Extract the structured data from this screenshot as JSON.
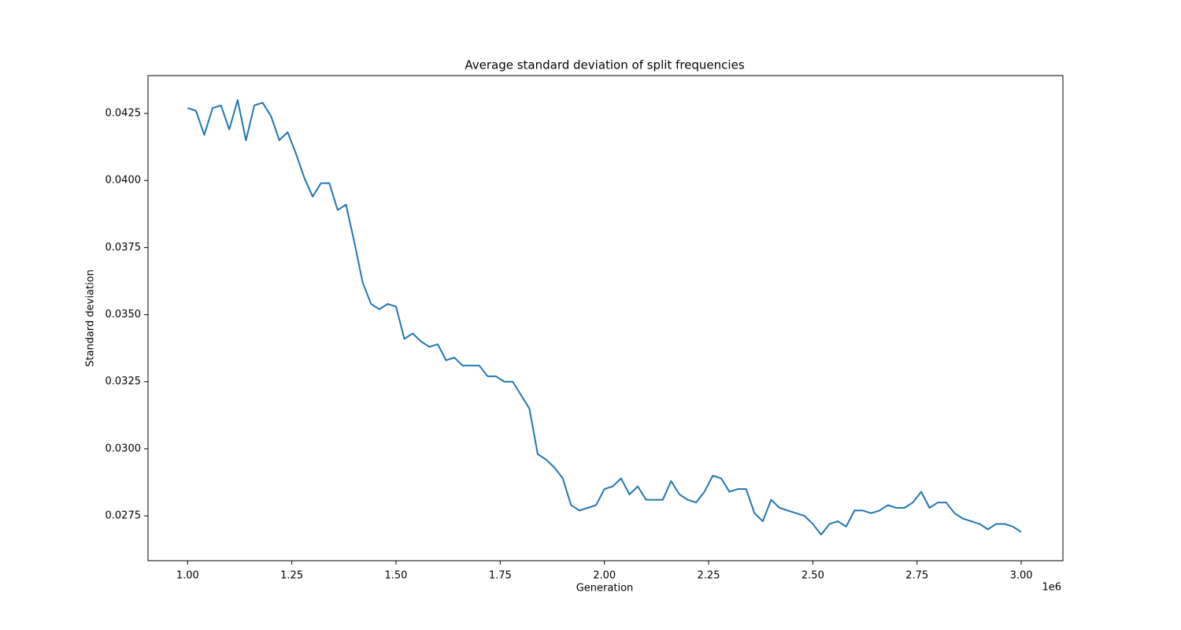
{
  "chart_data": {
    "type": "line",
    "title": "Average standard deviation of split frequencies",
    "x_label": "Generation",
    "y_label": "Standard deviation",
    "x_offset_label": "1e6",
    "x": [
      1000000,
      1020000,
      1040000,
      1060000,
      1080000,
      1100000,
      1120000,
      1140000,
      1160000,
      1180000,
      1200000,
      1220000,
      1240000,
      1260000,
      1280000,
      1300000,
      1320000,
      1340000,
      1360000,
      1380000,
      1400000,
      1420000,
      1440000,
      1460000,
      1480000,
      1500000,
      1520000,
      1540000,
      1560000,
      1580000,
      1600000,
      1620000,
      1640000,
      1660000,
      1680000,
      1700000,
      1720000,
      1740000,
      1760000,
      1780000,
      1800000,
      1820000,
      1840000,
      1860000,
      1880000,
      1900000,
      1920000,
      1940000,
      1960000,
      1980000,
      2000000,
      2020000,
      2040000,
      2060000,
      2080000,
      2100000,
      2120000,
      2140000,
      2160000,
      2180000,
      2200000,
      2220000,
      2240000,
      2260000,
      2280000,
      2300000,
      2320000,
      2340000,
      2360000,
      2380000,
      2400000,
      2420000,
      2440000,
      2460000,
      2480000,
      2500000,
      2520000,
      2540000,
      2560000,
      2580000,
      2600000,
      2620000,
      2640000,
      2660000,
      2680000,
      2700000,
      2720000,
      2740000,
      2760000,
      2780000,
      2800000,
      2820000,
      2840000,
      2860000,
      2880000,
      2900000,
      2920000,
      2940000,
      2960000,
      2980000,
      3000000
    ],
    "series": [
      {
        "name": "Average standard deviation",
        "color": "#1f77b4",
        "values": [
          0.0427,
          0.0426,
          0.0417,
          0.0427,
          0.0428,
          0.0419,
          0.043,
          0.0415,
          0.0428,
          0.0429,
          0.0424,
          0.0415,
          0.0418,
          0.041,
          0.0401,
          0.0394,
          0.0399,
          0.0399,
          0.0389,
          0.0391,
          0.0377,
          0.0362,
          0.0354,
          0.0352,
          0.0354,
          0.0353,
          0.0341,
          0.0343,
          0.034,
          0.0338,
          0.0339,
          0.0333,
          0.0334,
          0.0331,
          0.0331,
          0.0331,
          0.0327,
          0.0327,
          0.0325,
          0.0325,
          0.032,
          0.0315,
          0.0298,
          0.0296,
          0.0293,
          0.0289,
          0.0279,
          0.0277,
          0.0278,
          0.0279,
          0.0285,
          0.0286,
          0.0289,
          0.0283,
          0.0286,
          0.0281,
          0.0281,
          0.0281,
          0.0288,
          0.0283,
          0.0281,
          0.028,
          0.0284,
          0.029,
          0.0289,
          0.0284,
          0.0285,
          0.0285,
          0.0276,
          0.0273,
          0.0281,
          0.0278,
          0.0277,
          0.0276,
          0.0275,
          0.0272,
          0.0268,
          0.0272,
          0.0273,
          0.0271,
          0.0277,
          0.0277,
          0.0276,
          0.0277,
          0.0279,
          0.0278,
          0.0278,
          0.028,
          0.0284,
          0.0278,
          0.028,
          0.028,
          0.0276,
          0.0274,
          0.0273,
          0.0272,
          0.027,
          0.0272,
          0.0272,
          0.0271,
          0.0269
        ]
      }
    ],
    "xlim": [
      905000,
      3100000
    ],
    "ylim": [
      0.02583,
      0.04391
    ],
    "xticks": [
      {
        "value": 1000000,
        "label": "1.00"
      },
      {
        "value": 1250000,
        "label": "1.25"
      },
      {
        "value": 1500000,
        "label": "1.50"
      },
      {
        "value": 1750000,
        "label": "1.75"
      },
      {
        "value": 2000000,
        "label": "2.00"
      },
      {
        "value": 2250000,
        "label": "2.25"
      },
      {
        "value": 2500000,
        "label": "2.50"
      },
      {
        "value": 2750000,
        "label": "2.75"
      },
      {
        "value": 3000000,
        "label": "3.00"
      }
    ],
    "yticks": [
      0.0275,
      {
        "value": 0.03,
        "label": "0.0300"
      },
      0.0325,
      {
        "value": 0.035,
        "label": "0.0350"
      },
      0.0375,
      {
        "value": 0.04,
        "label": "0.0400"
      },
      0.0425
    ],
    "grid": false
  }
}
